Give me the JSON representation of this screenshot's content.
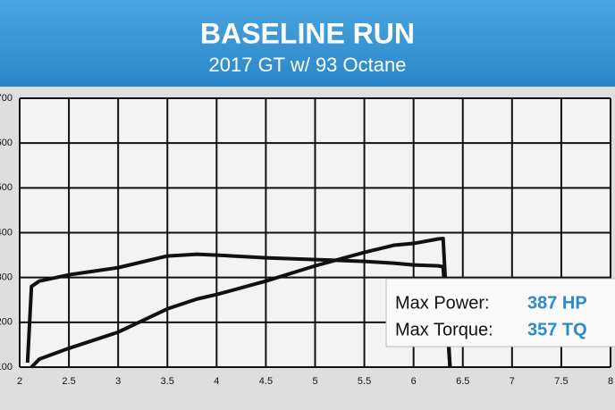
{
  "chart_data": {
    "type": "line",
    "title": "BASELINE RUN",
    "subtitle": "2017 GT w/ 93 Octane",
    "x": [
      2.08,
      2.12,
      2.2,
      2.5,
      3,
      3.5,
      3.8,
      4,
      4.5,
      5,
      5.5,
      5.8,
      6,
      6.25,
      6.3,
      6.37
    ],
    "series": [
      {
        "color": "#111111",
        "values": [
          110,
          280,
          292,
          306,
          322,
          348,
          352,
          350,
          344,
          340,
          336,
          332,
          328,
          326,
          324,
          100
        ]
      },
      {
        "color": "#111111",
        "values": [
          null,
          100,
          118,
          142,
          178,
          230,
          252,
          262,
          292,
          326,
          356,
          372,
          376,
          386,
          387,
          100
        ]
      }
    ],
    "xlim": [
      2,
      8
    ],
    "xticks": [
      2,
      2.5,
      3,
      3.5,
      4,
      4.5,
      5,
      5.5,
      6,
      6.5,
      7,
      7.5,
      8
    ],
    "ylim": [
      100,
      700
    ],
    "yticks": [
      100,
      200,
      300,
      400,
      500,
      600,
      700
    ],
    "grid": true,
    "annotations": [
      {
        "label": "Max Power:",
        "value": "387 HP"
      },
      {
        "label": "Max Torque:",
        "value": "357 TQ"
      }
    ]
  }
}
